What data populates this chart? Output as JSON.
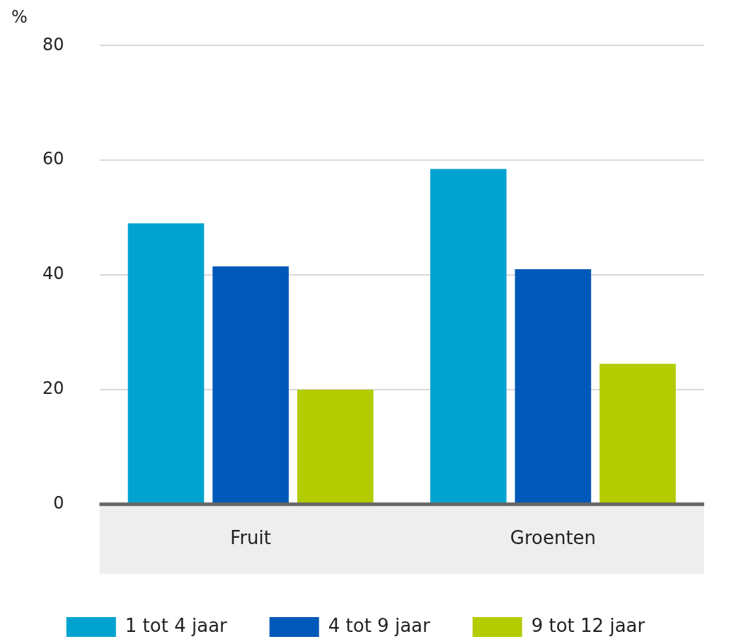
{
  "chart_data": {
    "type": "bar",
    "ylabel": "%",
    "categories": [
      "Fruit",
      "Groenten"
    ],
    "series": [
      {
        "name": "1 tot 4 jaar",
        "color": "#00a3d0",
        "values": [
          49,
          58.5
        ]
      },
      {
        "name": "4 tot 9 jaar",
        "color": "#0059b8",
        "values": [
          41.5,
          41
        ]
      },
      {
        "name": "9 tot 12 jaar",
        "color": "#b2cc00",
        "values": [
          20,
          24.5
        ]
      }
    ],
    "ylim": [
      0,
      80
    ],
    "yticks": [
      0,
      20,
      40,
      60,
      80
    ],
    "grid": "y",
    "legend": "bottom"
  }
}
